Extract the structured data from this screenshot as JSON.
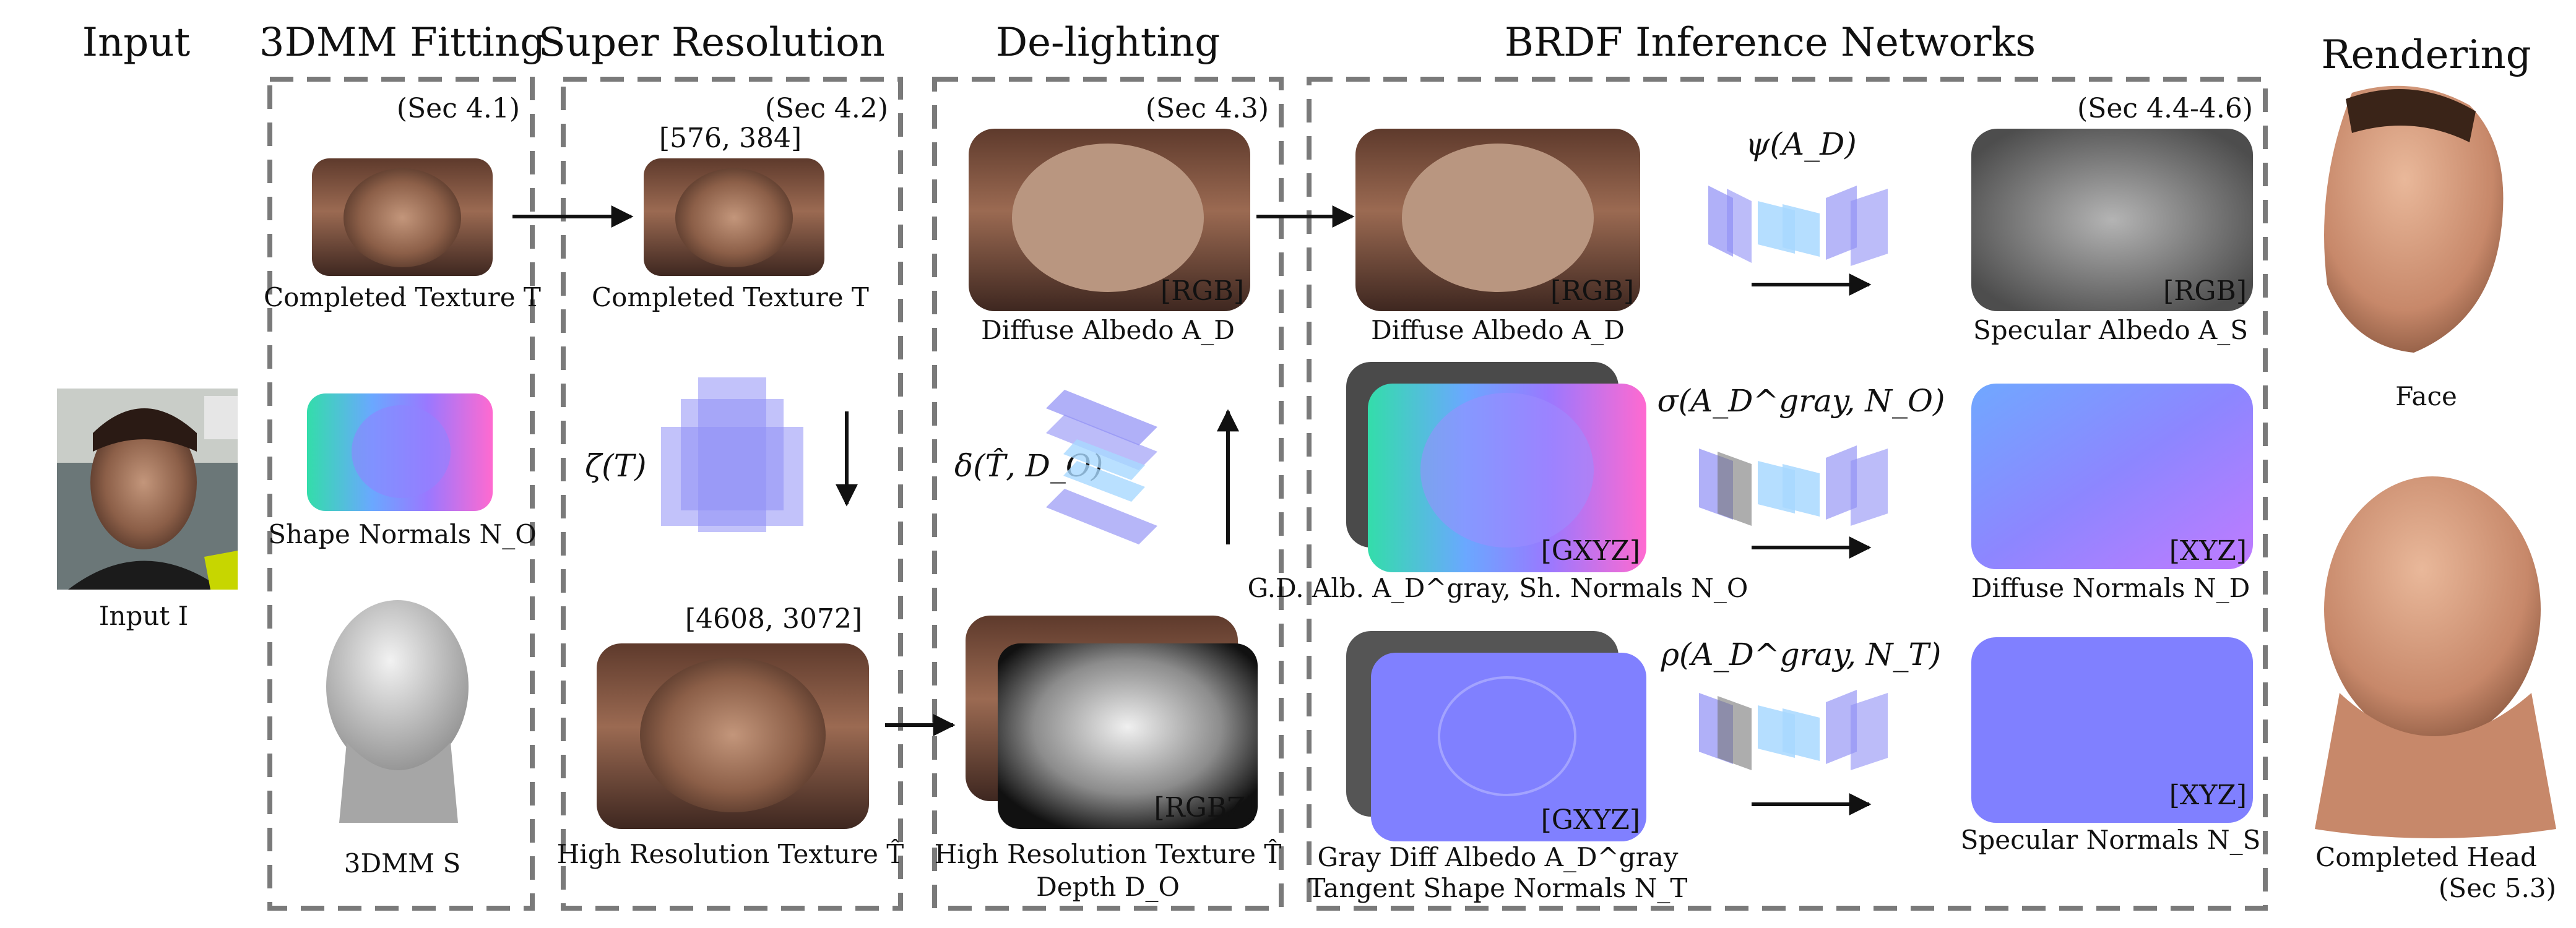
{
  "headers": {
    "input": "Input",
    "fitting": "3DMM Fitting",
    "superres": "Super Resolution",
    "delighting": "De-lighting",
    "brdf": "BRDF Inference Networks",
    "rendering": "Rendering"
  },
  "sections": {
    "fitting": "(Sec 4.1)",
    "superres": "(Sec 4.2)",
    "delighting": "(Sec 4.3)",
    "brdf": "(Sec 4.4-4.6)",
    "completed_head": "(Sec 5.3)"
  },
  "captions": {
    "input": "Input I",
    "completed_texture_1": "Completed Texture T",
    "shape_normals": "Shape Normals N_O",
    "dmm": "3DMM S",
    "completed_texture_2": "Completed Texture T",
    "high_res_texture": "High Resolution Texture T̂",
    "diffuse_albedo_1": "Diffuse Albedo A_D",
    "high_res_texture_2": "High Resolution Texture T̂",
    "depth": "Depth D_O",
    "diffuse_albedo_2": "Diffuse Albedo A_D",
    "gd_alb": "G.D. Alb. A_D^gray, Sh. Normals N_O",
    "gray_diff_albedo": "Gray Diff Albedo A_D^gray",
    "tangent_normals": "Tangent Shape Normals N_T",
    "specular_albedo": "Specular Albedo A_S",
    "diffuse_normals": "Diffuse Normals N_D",
    "specular_normals": "Specular Normals N_S",
    "face": "Face",
    "completed_head": "Completed Head"
  },
  "sizes": {
    "low": "[576, 384]",
    "high": "[4608, 3072]"
  },
  "tags": {
    "rgb": "[RGB]",
    "rgbz": "[RGBZ]",
    "gxyz": "[GXYZ]",
    "xyz": "[XYZ]"
  },
  "math": {
    "zeta": "ζ(T)",
    "delta": "δ(T̂, D_O)",
    "psi": "ψ(A_D)",
    "sigma": "σ(A_D^gray, N_O)",
    "rho": "ρ(A_D^gray, N_T)"
  },
  "colors": {
    "dash_border": "#7a7a7a",
    "network_layer": "#8f8ff5",
    "network_inner": "#a8d8ff",
    "normal_map": "#8080ff",
    "skin": "#8c5a43"
  },
  "icons": {
    "arrow": "arrow-icon"
  }
}
